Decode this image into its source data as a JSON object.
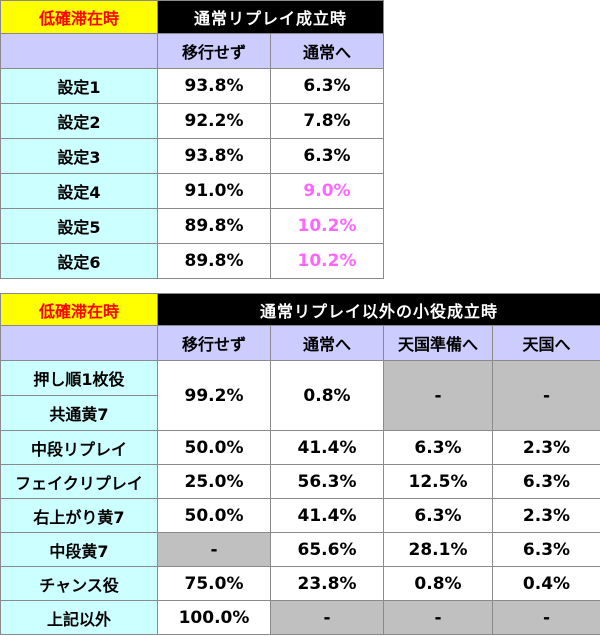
{
  "table1": {
    "corner": "低確滞在時",
    "title": "通常リプレイ成立時",
    "headers": [
      "移行せず",
      "通常へ"
    ],
    "rows": [
      {
        "label": "設定1",
        "stay": "93.8%",
        "normal": "6.3%"
      },
      {
        "label": "設定2",
        "stay": "92.2%",
        "normal": "7.8%"
      },
      {
        "label": "設定3",
        "stay": "93.8%",
        "normal": "6.3%"
      },
      {
        "label": "設定4",
        "stay": "91.0%",
        "normal": "9.0%"
      },
      {
        "label": "設定5",
        "stay": "89.8%",
        "normal": "10.2%"
      },
      {
        "label": "設定6",
        "stay": "89.8%",
        "normal": "10.2%"
      }
    ]
  },
  "table2": {
    "corner": "低確滞在時",
    "title": "通常リプレイ以外の小役成立時",
    "headers": [
      "移行せず",
      "通常へ",
      "天国準備へ",
      "天国へ"
    ],
    "merged": {
      "label_a": "押し順1枚役",
      "label_b": "共通黄7",
      "stay": "99.2%",
      "normal": "0.8%",
      "prep": "-",
      "heaven": "-"
    },
    "rows": [
      {
        "label": "中段リプレイ",
        "stay": "50.0%",
        "normal": "41.4%",
        "prep": "6.3%",
        "heaven": "2.3%"
      },
      {
        "label": "フェイクリプレイ",
        "stay": "25.0%",
        "normal": "56.3%",
        "prep": "12.5%",
        "heaven": "6.3%"
      },
      {
        "label": "右上がり黄7",
        "stay": "50.0%",
        "normal": "41.4%",
        "prep": "6.3%",
        "heaven": "2.3%"
      },
      {
        "label": "中段黄7",
        "stay": "-",
        "normal": "65.6%",
        "prep": "28.1%",
        "heaven": "6.3%"
      },
      {
        "label": "チャンス役",
        "stay": "75.0%",
        "normal": "23.8%",
        "prep": "0.8%",
        "heaven": "0.4%"
      },
      {
        "label": "上記以外",
        "stay": "100.0%",
        "normal": "-",
        "prep": "-",
        "heaven": "-"
      }
    ]
  },
  "colors": {
    "corner_bg": "#ffff00",
    "corner_text": "#ff0000",
    "title_bg": "#000000",
    "header_bg": "#ccccff",
    "label_bg": "#ccffff",
    "highlight_text": "#ff66ff",
    "na_cell_bg": "#c0c0c0"
  }
}
